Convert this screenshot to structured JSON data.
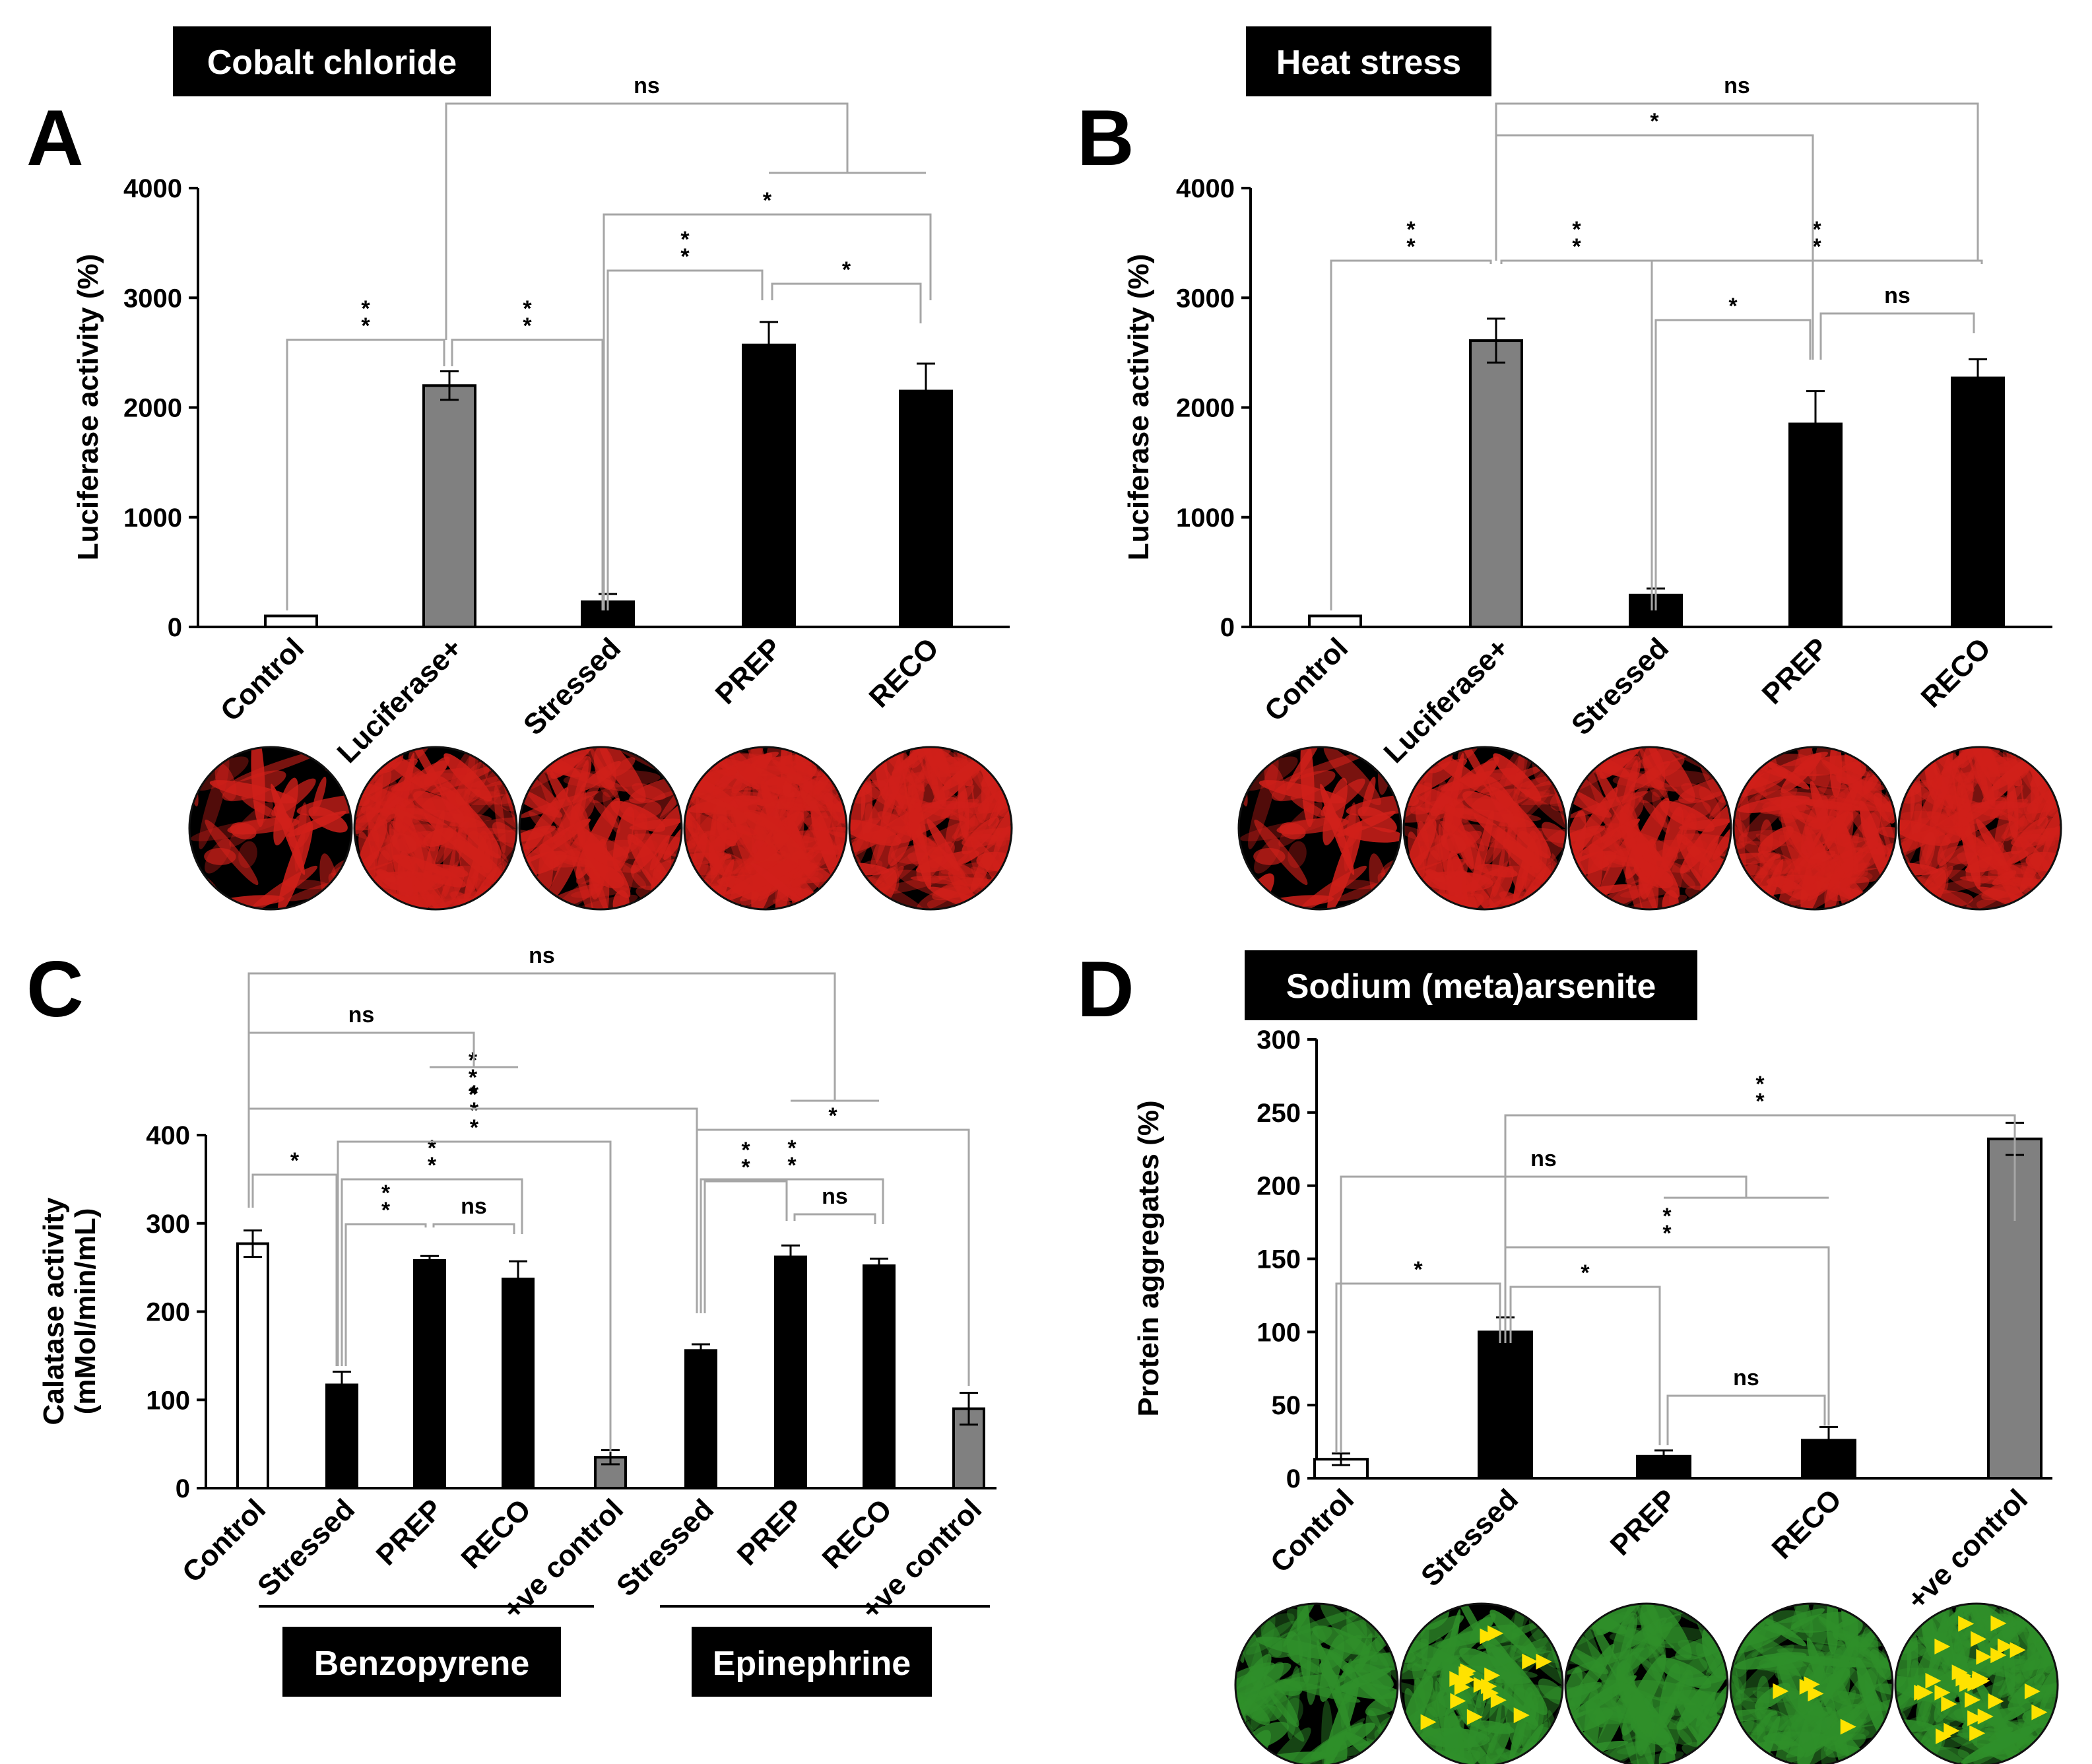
{
  "figure": {
    "panels": [
      {
        "letter": "A",
        "banner": "Cobalt chloride"
      },
      {
        "letter": "B",
        "banner": "Heat stress"
      },
      {
        "letter": "C",
        "banner": ""
      },
      {
        "letter": "D",
        "banner": "Sodium (meta)arsenite"
      }
    ]
  },
  "colors": {
    "black": "#000000",
    "gray": "#808080",
    "white": "#ffffff",
    "bracket": "#a6a6a6",
    "red_cells": "#d0201a",
    "green_cells": "#2f8f2a",
    "arrow": "#ffe200"
  },
  "chart_data": [
    {
      "panel": "A",
      "type": "bar",
      "title": "Cobalt chloride",
      "ylabel": "Luciferase activity (%)",
      "ylim": [
        0,
        4000
      ],
      "yticks": [
        0,
        1000,
        2000,
        3000,
        4000
      ],
      "categories": [
        "Control",
        "Luciferase+",
        "Stressed",
        "PREP",
        "RECO"
      ],
      "values": [
        100,
        2200,
        230,
        2570,
        2150
      ],
      "errors": [
        0,
        130,
        70,
        210,
        250
      ],
      "fills": [
        "white",
        "gray",
        "black",
        "black",
        "black"
      ],
      "significance": [
        {
          "from": "Control",
          "to": "Luciferase+",
          "label": "* *"
        },
        {
          "from": "Luciferase+",
          "to": "Stressed",
          "label": "* *"
        },
        {
          "from": "Stressed",
          "to": "PREP",
          "label": "* *"
        },
        {
          "from": "PREP",
          "to": "RECO",
          "label": "*"
        },
        {
          "from": "Stressed",
          "to": "RECO",
          "label": "*"
        },
        {
          "from": "Luciferase+",
          "to": "PREP+RECO",
          "label": "ns"
        }
      ],
      "micrographs": "red"
    },
    {
      "panel": "B",
      "type": "bar",
      "title": "Heat stress",
      "ylabel": "Luciferase activity (%)",
      "ylim": [
        0,
        4000
      ],
      "yticks": [
        0,
        1000,
        2000,
        3000,
        4000
      ],
      "categories": [
        "Control",
        "Luciferase+",
        "Stressed",
        "PREP",
        "RECO"
      ],
      "values": [
        100,
        2610,
        290,
        1850,
        2270
      ],
      "errors": [
        0,
        200,
        60,
        300,
        170
      ],
      "fills": [
        "white",
        "gray",
        "black",
        "black",
        "black"
      ],
      "significance": [
        {
          "from": "Control",
          "to": "Luciferase+",
          "label": "* *"
        },
        {
          "from": "Luciferase+",
          "to": "Stressed",
          "label": "* *"
        },
        {
          "from": "Stressed",
          "to": "PREP",
          "label": "*"
        },
        {
          "from": "PREP",
          "to": "RECO",
          "label": "ns"
        },
        {
          "from": "Stressed",
          "to": "RECO",
          "label": "* *"
        },
        {
          "from": "Luciferase+",
          "to": "PREP",
          "label": "*"
        },
        {
          "from": "Luciferase+",
          "to": "RECO",
          "label": "ns"
        }
      ],
      "micrographs": "red"
    },
    {
      "panel": "C",
      "type": "bar",
      "ylabel": "Calatase activity\n(mMol/min/mL)",
      "ylim": [
        0,
        400
      ],
      "yticks": [
        0,
        100,
        200,
        300,
        400
      ],
      "categories": [
        "Control",
        "Stressed",
        "PREP",
        "RECO",
        "+ve control",
        "Stressed",
        "PREP",
        "RECO",
        "+ve control"
      ],
      "values": [
        277,
        117,
        258,
        237,
        35,
        156,
        262,
        252,
        90
      ],
      "errors": [
        15,
        15,
        5,
        20,
        8,
        7,
        13,
        8,
        18
      ],
      "fills": [
        "white",
        "black",
        "black",
        "black",
        "gray",
        "black",
        "black",
        "black",
        "gray"
      ],
      "groups": [
        {
          "label": "Benzopyrene",
          "span": [
            1,
            4
          ]
        },
        {
          "label": "Epinephrine",
          "span": [
            5,
            8
          ]
        }
      ],
      "significance": [
        {
          "from": "Control",
          "to": "Stressed (Benzopyrene)",
          "label": "*"
        },
        {
          "from": "Stressed (Benzopyrene)",
          "to": "PREP (Benzopyrene)",
          "label": "* *"
        },
        {
          "from": "PREP (Benzopyrene)",
          "to": "RECO (Benzopyrene)",
          "label": "ns"
        },
        {
          "from": "Stressed (Benzopyrene)",
          "to": "RECO (Benzopyrene)",
          "label": "* *"
        },
        {
          "from": "Stressed (Benzopyrene)",
          "to": "+ve control (Benzopyrene)",
          "label": "* * *"
        },
        {
          "from": "Control",
          "to": "Stressed (Epinephrine)",
          "label": "* * *"
        },
        {
          "from": "Control",
          "to": "PREP+RECO (Benzopyrene)",
          "label": "ns"
        },
        {
          "from": "Control",
          "to": "PREP+RECO (Epinephrine)",
          "label": "ns"
        },
        {
          "from": "Stressed (Epinephrine)",
          "to": "PREP (Epinephrine)",
          "label": "* *"
        },
        {
          "from": "PREP (Epinephrine)",
          "to": "RECO (Epinephrine)",
          "label": "ns"
        },
        {
          "from": "Stressed (Epinephrine)",
          "to": "RECO (Epinephrine)",
          "label": "* *"
        },
        {
          "from": "Stressed (Epinephrine)",
          "to": "+ve control (Epinephrine)",
          "label": "*"
        }
      ]
    },
    {
      "panel": "D",
      "type": "bar",
      "title": "Sodium (meta)arsenite",
      "ylabel": "Protein aggregates (%)",
      "ylim": [
        0,
        300
      ],
      "yticks": [
        0,
        50,
        100,
        150,
        200,
        250,
        300
      ],
      "categories": [
        "Control",
        "Stressed",
        "PREP",
        "RECO",
        "+ve control"
      ],
      "values": [
        13,
        100,
        15,
        26,
        232
      ],
      "errors": [
        4,
        10,
        4,
        9,
        11
      ],
      "fills": [
        "white",
        "black",
        "black",
        "black",
        "gray"
      ],
      "significance": [
        {
          "from": "Control",
          "to": "Stressed",
          "label": "*"
        },
        {
          "from": "Stressed",
          "to": "PREP",
          "label": "*"
        },
        {
          "from": "PREP",
          "to": "RECO",
          "label": "ns"
        },
        {
          "from": "Stressed",
          "to": "RECO",
          "label": "* *"
        },
        {
          "from": "Control",
          "to": "PREP+RECO",
          "label": "ns"
        },
        {
          "from": "Stressed",
          "to": "+ve control",
          "label": "* *"
        }
      ],
      "micrographs": "green"
    }
  ]
}
